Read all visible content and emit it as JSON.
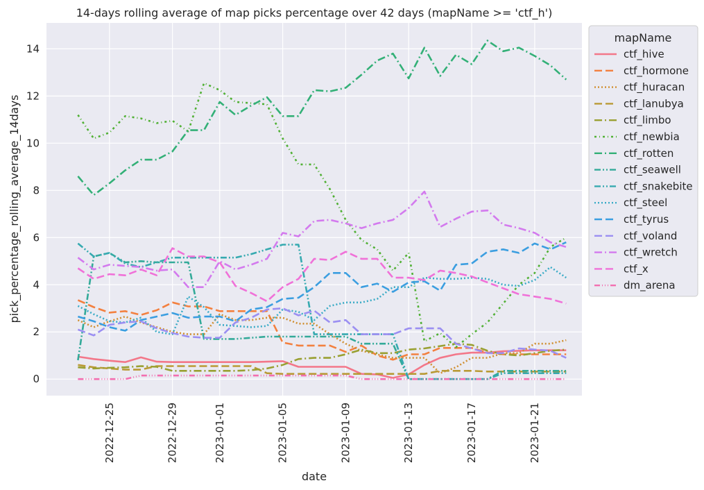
{
  "chart_data": {
    "type": "line",
    "title": "14-days rolling average of map picks percentage over 42 days (mapName >= 'ctf_h')",
    "xlabel": "date",
    "ylabel": "pick_percentage_rolling_average_14days",
    "ylim": [
      -0.7,
      15.1
    ],
    "xlim": [
      "2022-12-21",
      "2023-01-24"
    ],
    "grid": true,
    "legend": {
      "title": "mapName",
      "placement": "outside-right"
    },
    "x_ticks": [
      "2022-12-25",
      "2022-12-29",
      "2023-01-01",
      "2023-01-05",
      "2023-01-09",
      "2023-01-13",
      "2023-01-17",
      "2023-01-21"
    ],
    "y_ticks": [
      0,
      2,
      4,
      6,
      8,
      10,
      12,
      14
    ],
    "x": [
      "2022-12-23",
      "2022-12-24",
      "2022-12-25",
      "2022-12-26",
      "2022-12-27",
      "2022-12-28",
      "2022-12-29",
      "2022-12-30",
      "2022-12-31",
      "2023-01-01",
      "2023-01-02",
      "2023-01-03",
      "2023-01-04",
      "2023-01-05",
      "2023-01-06",
      "2023-01-07",
      "2023-01-08",
      "2023-01-09",
      "2023-01-10",
      "2023-01-11",
      "2023-01-12",
      "2023-01-13",
      "2023-01-14",
      "2023-01-15",
      "2023-01-16",
      "2023-01-17",
      "2023-01-18",
      "2023-01-19",
      "2023-01-20",
      "2023-01-21",
      "2023-01-22",
      "2023-01-23"
    ],
    "series": [
      {
        "name": "ctf_hive",
        "color": "#f37789",
        "dash": "solid",
        "values": [
          0.95,
          0.85,
          0.78,
          0.72,
          0.92,
          0.74,
          0.72,
          0.72,
          0.72,
          0.72,
          0.72,
          0.72,
          0.74,
          0.76,
          0.52,
          0.52,
          0.52,
          0.52,
          0.22,
          0.2,
          0.05,
          0.2,
          0.6,
          0.9,
          1.05,
          1.12,
          1.12,
          1.18,
          1.2,
          1.22,
          1.22,
          1.22
        ]
      },
      {
        "name": "ctf_hormone",
        "color": "#f3803f",
        "dash": "dashed",
        "values": [
          3.35,
          3.05,
          2.82,
          2.88,
          2.72,
          2.92,
          3.25,
          3.08,
          3.08,
          2.88,
          2.88,
          2.88,
          2.88,
          1.55,
          1.42,
          1.42,
          1.42,
          1.15,
          1.42,
          1.0,
          0.82,
          1.05,
          1.05,
          1.32,
          1.32,
          1.32,
          1.12,
          1.05,
          1.05,
          1.05,
          1.05,
          1.05
        ]
      },
      {
        "name": "ctf_huracan",
        "color": "#d08f30",
        "dash": "dotted",
        "values": [
          2.5,
          2.2,
          2.45,
          2.65,
          2.4,
          2.2,
          2.0,
          1.9,
          1.9,
          2.75,
          2.5,
          2.5,
          2.6,
          2.6,
          2.35,
          2.35,
          1.9,
          1.5,
          1.2,
          1.05,
          0.9,
          0.9,
          0.9,
          0.25,
          0.5,
          0.9,
          0.9,
          1.1,
          1.1,
          1.5,
          1.5,
          1.65
        ]
      },
      {
        "name": "ctf_lanubya",
        "color": "#b99a35",
        "dash": "dashed",
        "values": [
          0.6,
          0.5,
          0.45,
          0.4,
          0.4,
          0.55,
          0.55,
          0.55,
          0.55,
          0.55,
          0.55,
          0.55,
          0.25,
          0.22,
          0.22,
          0.22,
          0.22,
          0.22,
          0.22,
          0.22,
          0.22,
          0.22,
          0.22,
          0.35,
          0.35,
          0.35,
          0.32,
          0.32,
          0.32,
          0.32,
          0.32,
          0.32
        ]
      },
      {
        "name": "ctf_limbo",
        "color": "#99a032",
        "dash": "dashdot",
        "values": [
          0.5,
          0.45,
          0.48,
          0.5,
          0.55,
          0.52,
          0.35,
          0.35,
          0.35,
          0.35,
          0.35,
          0.38,
          0.45,
          0.6,
          0.85,
          0.9,
          0.9,
          1.05,
          1.25,
          1.1,
          1.1,
          1.25,
          1.3,
          1.4,
          1.5,
          1.45,
          1.2,
          1.05,
          1.0,
          1.1,
          1.2,
          1.25
        ]
      },
      {
        "name": "ctf_newbia",
        "color": "#50b034",
        "dash": "dashdotted",
        "values": [
          11.2,
          10.2,
          10.45,
          11.15,
          11.05,
          10.85,
          10.95,
          10.5,
          12.55,
          12.25,
          11.75,
          11.7,
          11.65,
          10.2,
          9.1,
          9.1,
          8.05,
          6.75,
          5.9,
          5.5,
          4.6,
          5.35,
          1.6,
          1.95,
          1.35,
          1.9,
          2.4,
          3.2,
          4.0,
          4.5,
          5.6,
          6.0
        ]
      },
      {
        "name": "ctf_rotten",
        "color": "#33b077",
        "dash": "dashdot",
        "values": [
          8.6,
          7.8,
          8.3,
          8.85,
          9.3,
          9.3,
          9.65,
          10.55,
          10.55,
          11.75,
          11.2,
          11.6,
          11.95,
          11.15,
          11.15,
          12.25,
          12.2,
          12.35,
          12.9,
          13.5,
          13.8,
          12.75,
          14.05,
          12.85,
          13.75,
          13.35,
          14.35,
          13.9,
          14.05,
          13.7,
          13.3,
          12.7
        ]
      },
      {
        "name": "ctf_seawell",
        "color": "#33aa99",
        "dash": "dashdotdot",
        "values": [
          0.8,
          5.2,
          5.35,
          4.95,
          5.0,
          4.95,
          4.95,
          4.95,
          1.7,
          1.7,
          1.7,
          1.75,
          1.8,
          1.8,
          1.8,
          1.8,
          1.8,
          1.8,
          1.5,
          1.5,
          1.5,
          0.0,
          0.0,
          0.0,
          0.0,
          0.0,
          0.0,
          0.35,
          0.35,
          0.35,
          0.35,
          0.35
        ]
      },
      {
        "name": "ctf_snakebite",
        "color": "#36aab0",
        "dash": "dashdotdot",
        "values": [
          5.75,
          5.2,
          5.35,
          4.9,
          4.75,
          4.95,
          5.15,
          5.15,
          5.15,
          5.15,
          5.15,
          5.3,
          5.5,
          5.7,
          5.7,
          1.9,
          1.9,
          1.9,
          1.9,
          1.9,
          1.9,
          0.0,
          0.0,
          0.0,
          0.0,
          0.0,
          0.0,
          0.25,
          0.25,
          0.25,
          0.25,
          0.25
        ]
      },
      {
        "name": "ctf_steel",
        "color": "#3aabc6",
        "dash": "dotted",
        "values": [
          3.1,
          2.75,
          2.45,
          2.4,
          2.6,
          2.0,
          1.9,
          3.5,
          3.05,
          2.3,
          2.25,
          2.2,
          2.25,
          2.95,
          2.85,
          2.5,
          3.1,
          3.25,
          3.25,
          3.4,
          3.9,
          3.9,
          4.3,
          4.25,
          4.25,
          4.3,
          4.25,
          4.0,
          3.95,
          4.2,
          4.75,
          4.3
        ]
      },
      {
        "name": "ctf_tyrus",
        "color": "#3b9ee0",
        "dash": "dashed",
        "values": [
          2.65,
          2.45,
          2.2,
          2.05,
          2.5,
          2.65,
          2.8,
          2.6,
          2.65,
          2.65,
          2.45,
          2.95,
          3.05,
          3.4,
          3.45,
          3.9,
          4.5,
          4.5,
          3.9,
          4.05,
          3.7,
          4.1,
          4.15,
          3.75,
          4.85,
          4.9,
          5.4,
          5.5,
          5.35,
          5.75,
          5.5,
          5.8
        ]
      },
      {
        "name": "ctf_voland",
        "color": "#9b8ff2",
        "dash": "dashed",
        "values": [
          2.1,
          1.85,
          2.3,
          2.4,
          2.45,
          2.15,
          1.95,
          1.8,
          1.75,
          1.75,
          2.4,
          2.6,
          2.95,
          3.0,
          2.7,
          2.9,
          2.4,
          2.5,
          1.9,
          1.9,
          1.9,
          2.15,
          2.15,
          2.15,
          1.5,
          1.3,
          1.1,
          1.1,
          1.3,
          1.25,
          1.2,
          0.9
        ]
      },
      {
        "name": "ctf_wretch",
        "color": "#d37aee",
        "dash": "dashdot",
        "values": [
          5.15,
          4.65,
          4.85,
          4.8,
          4.75,
          4.6,
          4.65,
          3.9,
          3.9,
          5.0,
          4.65,
          4.85,
          5.1,
          6.2,
          6.05,
          6.7,
          6.75,
          6.6,
          6.4,
          6.6,
          6.75,
          7.25,
          7.95,
          6.45,
          6.8,
          7.1,
          7.15,
          6.55,
          6.4,
          6.2,
          5.8,
          5.6
        ]
      },
      {
        "name": "ctf_x",
        "color": "#f071d8",
        "dash": "dashed",
        "values": [
          4.7,
          4.25,
          4.45,
          4.4,
          4.65,
          4.4,
          5.55,
          5.2,
          5.2,
          4.95,
          3.95,
          3.65,
          3.3,
          3.9,
          4.25,
          5.1,
          5.05,
          5.4,
          5.1,
          5.1,
          4.3,
          4.3,
          4.2,
          4.6,
          4.5,
          4.35,
          4.1,
          3.85,
          3.6,
          3.5,
          3.4,
          3.2
        ]
      },
      {
        "name": "dm_arena",
        "color": "#f36fb0",
        "dash": "dashdotdotdot",
        "values": [
          0.0,
          0.0,
          0.0,
          0.0,
          0.15,
          0.15,
          0.15,
          0.15,
          0.15,
          0.15,
          0.15,
          0.15,
          0.15,
          0.15,
          0.15,
          0.15,
          0.15,
          0.15,
          0.0,
          0.0,
          0.0,
          0.0,
          0.0,
          0.0,
          0.0,
          0.0,
          0.0,
          0.0,
          0.0,
          0.0,
          0.0,
          0.0
        ]
      }
    ]
  }
}
